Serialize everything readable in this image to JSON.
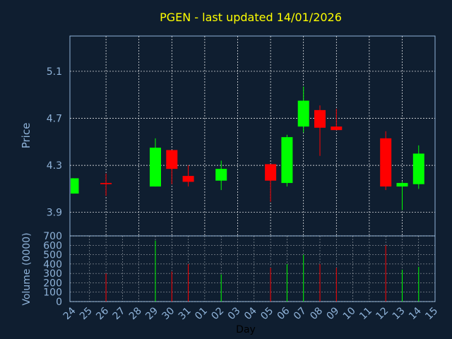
{
  "chart_data": {
    "type": "candlestick",
    "title": "PGEN - last updated 14/01/2026",
    "xlabel": "Day",
    "price_ylabel": "Price",
    "volume_ylabel": "Volume (0000)",
    "categories": [
      "24",
      "25",
      "26",
      "27",
      "28",
      "29",
      "30",
      "31",
      "01",
      "02",
      "03",
      "04",
      "05",
      "06",
      "07",
      "08",
      "09",
      "10",
      "11",
      "12",
      "13",
      "14",
      "15"
    ],
    "price_ticks": [
      "3.9",
      "4.3",
      "4.7",
      "5.1"
    ],
    "price_ylim": [
      3.7,
      5.4
    ],
    "volume_ticks": [
      "0",
      "100",
      "200",
      "300",
      "400",
      "500",
      "600",
      "700"
    ],
    "volume_ylim": [
      0,
      700
    ],
    "grid": true,
    "colors": {
      "background": "#0f1e30",
      "up": "#00ff00",
      "down": "#ff0000",
      "title": "#ffff00",
      "text": "#8fb3d9",
      "grid": "#ffffff",
      "axis": "#8fb3d9"
    },
    "candles": [
      {
        "day": "24",
        "open": 4.06,
        "high": 4.19,
        "low": 4.06,
        "close": 4.19,
        "volume": null
      },
      {
        "day": "26",
        "open": 4.15,
        "high": 4.23,
        "low": 4.04,
        "close": 4.14,
        "volume": 300
      },
      {
        "day": "29",
        "open": 4.12,
        "high": 4.53,
        "low": 4.12,
        "close": 4.45,
        "volume": 650
      },
      {
        "day": "30",
        "open": 4.43,
        "high": 4.43,
        "low": 4.14,
        "close": 4.27,
        "volume": 320
      },
      {
        "day": "31",
        "open": 4.21,
        "high": 4.3,
        "low": 4.12,
        "close": 4.16,
        "volume": 400
      },
      {
        "day": "02",
        "open": 4.17,
        "high": 4.34,
        "low": 4.09,
        "close": 4.27,
        "volume": 290
      },
      {
        "day": "05",
        "open": 4.31,
        "high": 4.31,
        "low": 3.99,
        "close": 4.17,
        "volume": 360
      },
      {
        "day": "06",
        "open": 4.15,
        "high": 4.56,
        "low": 4.12,
        "close": 4.54,
        "volume": 400
      },
      {
        "day": "07",
        "open": 4.63,
        "high": 4.97,
        "low": 4.58,
        "close": 4.85,
        "volume": 500
      },
      {
        "day": "08",
        "open": 4.77,
        "high": 4.81,
        "low": 4.38,
        "close": 4.62,
        "volume": 400
      },
      {
        "day": "09",
        "open": 4.63,
        "high": 4.78,
        "low": 4.6,
        "close": 4.6,
        "volume": 360
      },
      {
        "day": "12",
        "open": 4.53,
        "high": 4.59,
        "low": 4.09,
        "close": 4.12,
        "volume": 600
      },
      {
        "day": "13",
        "open": 4.12,
        "high": 4.16,
        "low": 3.92,
        "close": 4.15,
        "volume": 340
      },
      {
        "day": "14",
        "open": 4.14,
        "high": 4.47,
        "low": 4.1,
        "close": 4.4,
        "volume": 370
      }
    ]
  }
}
